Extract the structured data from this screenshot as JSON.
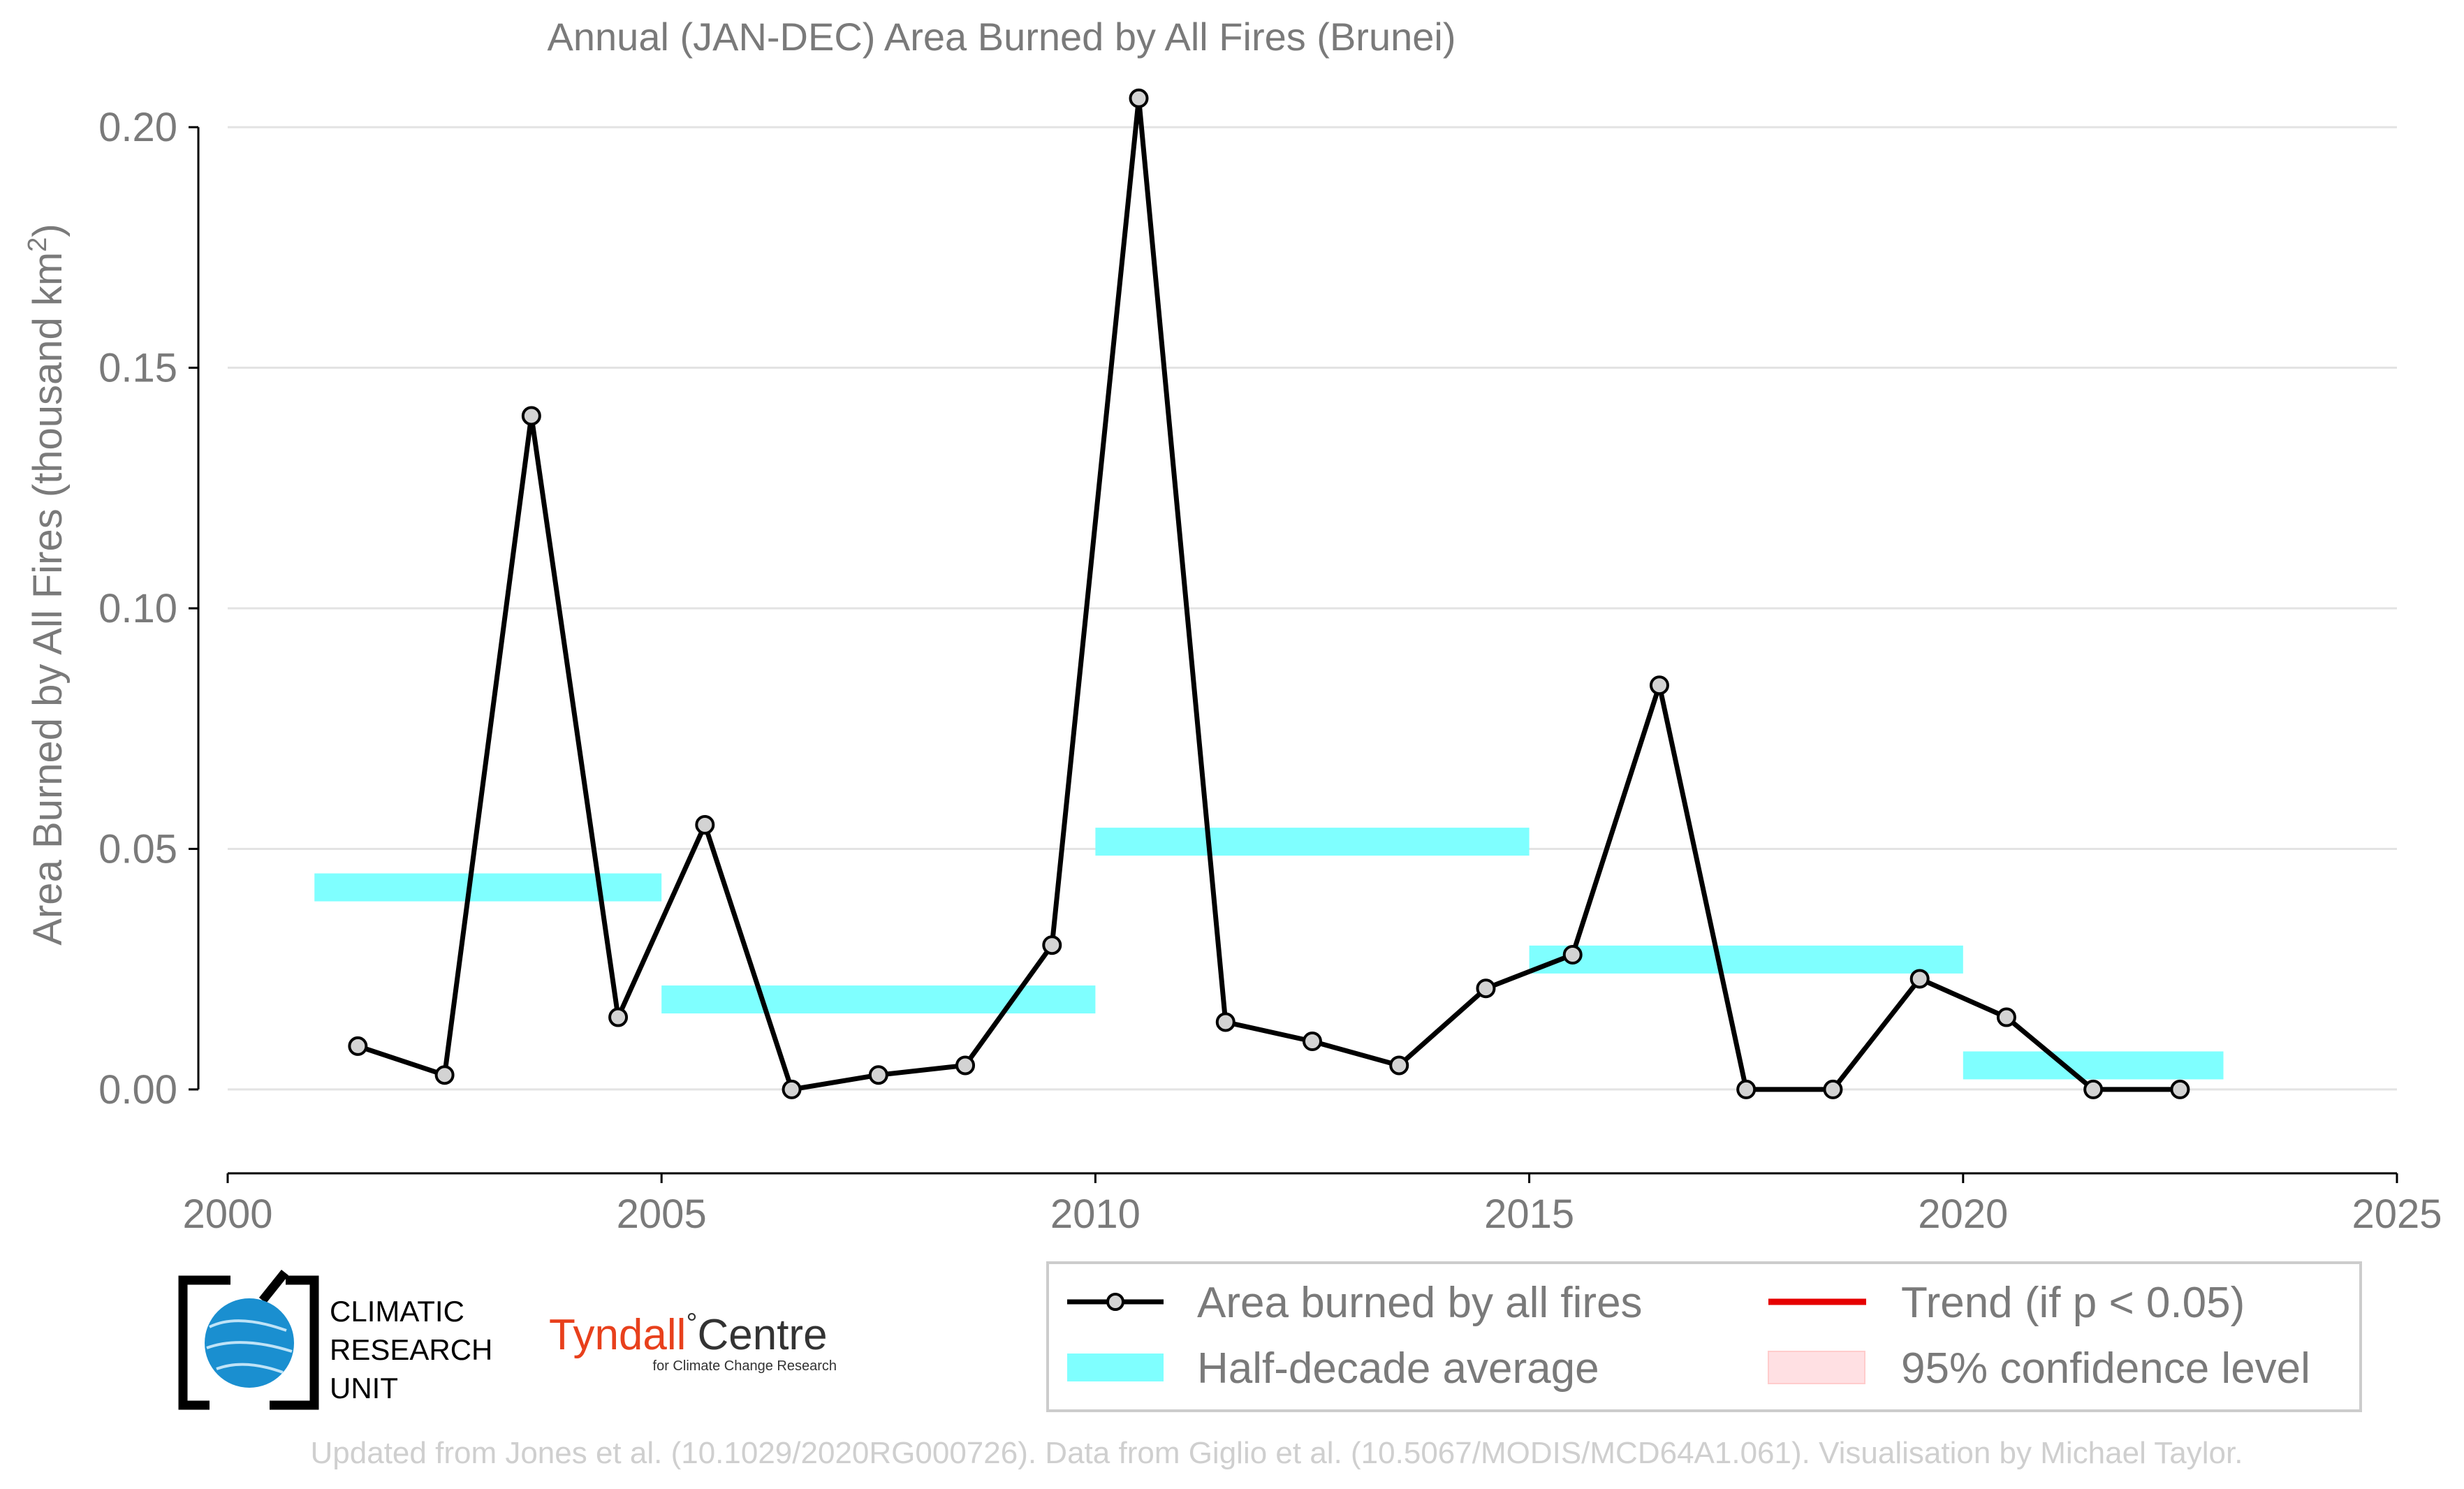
{
  "chart_data": {
    "type": "line",
    "title": "Annual (JAN-DEC) Area Burned by All Fires (Brunei)",
    "xlabel": "",
    "ylabel": "Area Burned by All Fires (thousand km",
    "ylabel_superscript": "2",
    "ylabel_suffix": ")",
    "xlim": [
      2000,
      2025
    ],
    "ylim": [
      -0.0125,
      0.2125
    ],
    "x_ticks": [
      2000,
      2005,
      2010,
      2015,
      2020,
      2025
    ],
    "x_tick_labels": [
      "2000",
      "2005",
      "2010",
      "2015",
      "2020",
      "2025"
    ],
    "y_ticks": [
      0.0,
      0.05,
      0.1,
      0.15,
      0.2
    ],
    "y_tick_labels": [
      "0.00",
      "0.05",
      "0.10",
      "0.15",
      "0.20"
    ],
    "grid": true,
    "series": [
      {
        "name": "Area burned by all fires",
        "color": "#000000",
        "marker_fill": "#d3d3d3",
        "x": [
          2001.5,
          2002.5,
          2003.5,
          2004.5,
          2005.5,
          2006.5,
          2007.5,
          2008.5,
          2009.5,
          2010.5,
          2011.5,
          2012.5,
          2013.5,
          2014.5,
          2015.5,
          2016.5,
          2017.5,
          2018.5,
          2019.5,
          2020.5,
          2021.5,
          2022.5
        ],
        "y": [
          0.009,
          0.003,
          0.14,
          0.015,
          0.055,
          0.0,
          0.003,
          0.005,
          0.03,
          0.206,
          0.014,
          0.01,
          0.005,
          0.021,
          0.028,
          0.084,
          0.0,
          0.0,
          0.023,
          0.015,
          0.0,
          0.0
        ]
      }
    ],
    "half_decade_average": {
      "name": "Half-decade average",
      "color": "#7fffff",
      "segments": [
        {
          "x_start": 2001,
          "x_end": 2005,
          "value": 0.042
        },
        {
          "x_start": 2005,
          "x_end": 2010,
          "value": 0.0187
        },
        {
          "x_start": 2010,
          "x_end": 2015,
          "value": 0.0515
        },
        {
          "x_start": 2015,
          "x_end": 2020,
          "value": 0.027
        },
        {
          "x_start": 2020,
          "x_end": 2023,
          "value": 0.005
        }
      ]
    },
    "legend": {
      "placement": "bottom-right",
      "entries": [
        {
          "label": "Area burned by all fires",
          "kind": "line-marker",
          "color": "#000000"
        },
        {
          "label": "Trend (if p < 0.05)",
          "kind": "line",
          "color": "#e60000"
        },
        {
          "label": "Half-decade average",
          "kind": "band",
          "color": "#7fffff"
        },
        {
          "label": "95% confidence level",
          "kind": "patch",
          "color": "#ffe0e3"
        }
      ]
    }
  },
  "logos": {
    "cru_lines": [
      "CLIMATIC",
      "RESEARCH",
      "UNIT"
    ],
    "tyndall_main": "Tyndall",
    "tyndall_degree": "°",
    "tyndall_centre": "Centre",
    "tyndall_sub": "for Climate Change Research"
  },
  "footer": "Updated from Jones et al. (10.1029/2020RG000726). Data from Giglio et al. (10.5067/MODIS/MCD64A1.061). Visualisation by Michael Taylor."
}
